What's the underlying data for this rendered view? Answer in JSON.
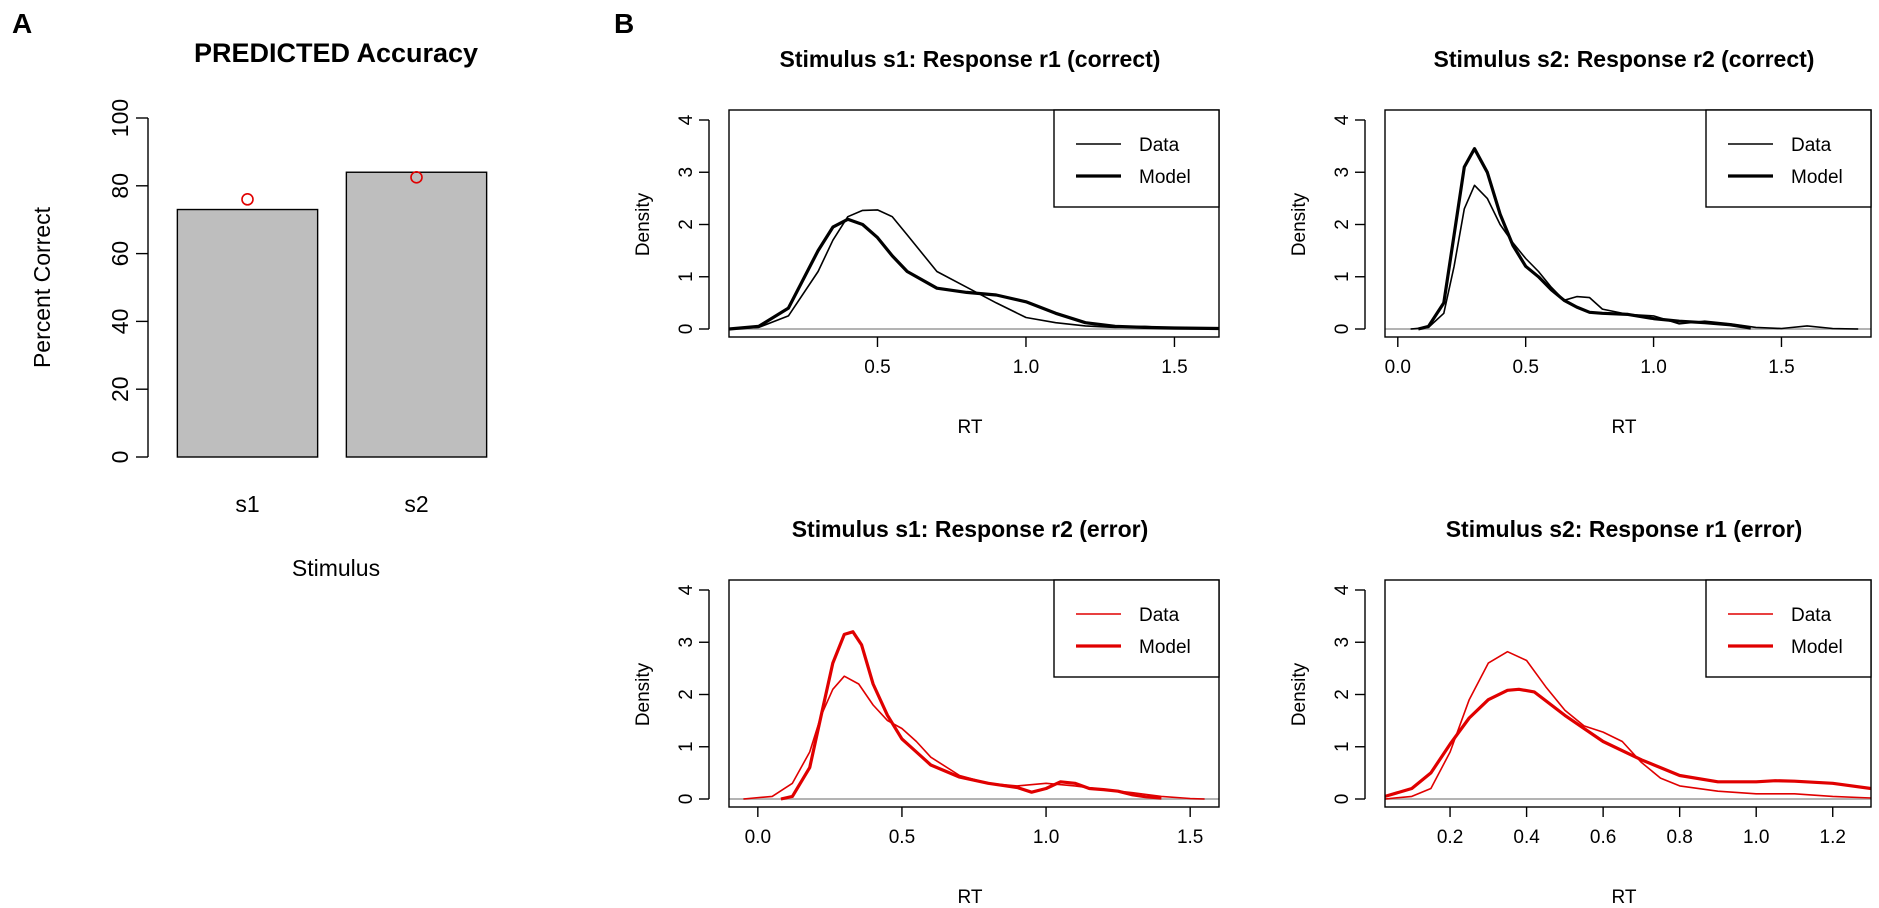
{
  "panel_labels": {
    "a": "A",
    "b": "B"
  },
  "colors": {
    "bar_fill": "#bebebe",
    "data_black": "#000000",
    "model_red": "#e00000",
    "baseline": "#b3b3b3"
  },
  "chart_data": [
    {
      "id": "accuracy",
      "type": "bar",
      "title": "PREDICTED Accuracy",
      "xlabel": "Stimulus",
      "ylabel": "Percent Correct",
      "categories": [
        "s1",
        "s2"
      ],
      "values": [
        73,
        84
      ],
      "points_label": "predicted",
      "points": [
        76,
        82.5
      ],
      "ylim": [
        0,
        100
      ],
      "yticks": [
        0,
        20,
        40,
        60,
        80,
        100
      ],
      "ytick_labels": [
        "0",
        "20",
        "40",
        "60",
        "80",
        "100"
      ]
    },
    {
      "id": "s1r1",
      "type": "line",
      "title": "Stimulus s1: Response r1 (correct)",
      "xlabel": "RT",
      "ylabel": "Density",
      "color": "#000000",
      "xlim": [
        0.0,
        1.65
      ],
      "ylim": [
        0,
        4
      ],
      "xticks": [
        0.5,
        1.0,
        1.5
      ],
      "xtick_labels": [
        "0.5",
        "1.0",
        "1.5"
      ],
      "yticks": [
        0,
        1,
        2,
        3,
        4
      ],
      "ytick_labels": [
        "0",
        "1",
        "2",
        "3",
        "4"
      ],
      "legend": [
        "Data",
        "Model"
      ],
      "series": [
        {
          "name": "Data",
          "x": [
            0.0,
            0.1,
            0.2,
            0.3,
            0.35,
            0.4,
            0.45,
            0.5,
            0.55,
            0.6,
            0.7,
            0.8,
            0.9,
            1.0,
            1.1,
            1.2,
            1.3,
            1.4,
            1.5,
            1.65
          ],
          "y": [
            0.0,
            0.03,
            0.25,
            1.1,
            1.7,
            2.15,
            2.27,
            2.28,
            2.15,
            1.8,
            1.1,
            0.8,
            0.5,
            0.22,
            0.12,
            0.06,
            0.03,
            0.05,
            0.02,
            0.0
          ]
        },
        {
          "name": "Model",
          "x": [
            0.0,
            0.1,
            0.2,
            0.3,
            0.35,
            0.4,
            0.45,
            0.5,
            0.55,
            0.6,
            0.7,
            0.8,
            0.9,
            1.0,
            1.1,
            1.2,
            1.3,
            1.4,
            1.5,
            1.65
          ],
          "y": [
            0.0,
            0.05,
            0.4,
            1.5,
            1.95,
            2.1,
            2.0,
            1.75,
            1.4,
            1.1,
            0.78,
            0.7,
            0.65,
            0.52,
            0.3,
            0.12,
            0.05,
            0.03,
            0.02,
            0.01
          ]
        }
      ]
    },
    {
      "id": "s2r2",
      "type": "line",
      "title": "Stimulus s2: Response r2 (correct)",
      "xlabel": "RT",
      "ylabel": "Density",
      "color": "#000000",
      "xlim": [
        -0.05,
        1.85
      ],
      "ylim": [
        0,
        4
      ],
      "xticks": [
        0.0,
        0.5,
        1.0,
        1.5
      ],
      "xtick_labels": [
        "0.0",
        "0.5",
        "1.0",
        "1.5"
      ],
      "yticks": [
        0,
        1,
        2,
        3,
        4
      ],
      "ytick_labels": [
        "0",
        "1",
        "2",
        "3",
        "4"
      ],
      "legend": [
        "Data",
        "Model"
      ],
      "series": [
        {
          "name": "Data",
          "x": [
            0.05,
            0.12,
            0.18,
            0.22,
            0.26,
            0.3,
            0.35,
            0.4,
            0.45,
            0.5,
            0.55,
            0.6,
            0.65,
            0.7,
            0.75,
            0.8,
            0.9,
            1.0,
            1.1,
            1.2,
            1.3,
            1.4,
            1.5,
            1.6,
            1.7,
            1.8
          ],
          "y": [
            0.0,
            0.03,
            0.3,
            1.2,
            2.3,
            2.75,
            2.5,
            2.0,
            1.65,
            1.35,
            1.1,
            0.8,
            0.55,
            0.62,
            0.6,
            0.38,
            0.28,
            0.25,
            0.1,
            0.15,
            0.1,
            0.03,
            0.01,
            0.06,
            0.01,
            0.0
          ]
        },
        {
          "name": "Model",
          "x": [
            0.08,
            0.12,
            0.18,
            0.22,
            0.26,
            0.3,
            0.35,
            0.4,
            0.45,
            0.5,
            0.55,
            0.6,
            0.65,
            0.7,
            0.75,
            0.8,
            0.9,
            1.0,
            1.1,
            1.2,
            1.3,
            1.38
          ],
          "y": [
            0.0,
            0.05,
            0.5,
            1.8,
            3.1,
            3.45,
            3.0,
            2.2,
            1.6,
            1.2,
            1.0,
            0.75,
            0.55,
            0.42,
            0.32,
            0.3,
            0.28,
            0.2,
            0.15,
            0.12,
            0.08,
            0.02
          ]
        }
      ]
    },
    {
      "id": "s1r2",
      "type": "line",
      "title": "Stimulus s1: Response r2 (error)",
      "xlabel": "RT",
      "ylabel": "Density",
      "color": "#e00000",
      "xlim": [
        -0.1,
        1.6
      ],
      "ylim": [
        0,
        4
      ],
      "xticks": [
        0.0,
        0.5,
        1.0,
        1.5
      ],
      "xtick_labels": [
        "0.0",
        "0.5",
        "1.0",
        "1.5"
      ],
      "yticks": [
        0,
        1,
        2,
        3,
        4
      ],
      "ytick_labels": [
        "0",
        "1",
        "2",
        "3",
        "4"
      ],
      "legend": [
        "Data",
        "Model"
      ],
      "series": [
        {
          "name": "Data",
          "x": [
            -0.05,
            0.05,
            0.12,
            0.18,
            0.22,
            0.26,
            0.3,
            0.35,
            0.4,
            0.45,
            0.5,
            0.55,
            0.6,
            0.7,
            0.8,
            0.9,
            1.0,
            1.1,
            1.2,
            1.3,
            1.4,
            1.5,
            1.55
          ],
          "y": [
            0.0,
            0.05,
            0.3,
            0.9,
            1.6,
            2.1,
            2.35,
            2.2,
            1.8,
            1.5,
            1.35,
            1.1,
            0.8,
            0.45,
            0.3,
            0.25,
            0.3,
            0.25,
            0.18,
            0.12,
            0.05,
            0.01,
            0.0
          ]
        },
        {
          "name": "Model",
          "x": [
            0.08,
            0.12,
            0.18,
            0.22,
            0.26,
            0.3,
            0.33,
            0.36,
            0.4,
            0.45,
            0.5,
            0.55,
            0.6,
            0.7,
            0.8,
            0.9,
            0.95,
            1.0,
            1.05,
            1.1,
            1.15,
            1.2,
            1.25,
            1.3,
            1.35,
            1.4
          ],
          "y": [
            0.0,
            0.05,
            0.6,
            1.6,
            2.6,
            3.15,
            3.2,
            2.95,
            2.2,
            1.6,
            1.15,
            0.9,
            0.65,
            0.42,
            0.3,
            0.22,
            0.13,
            0.2,
            0.33,
            0.3,
            0.2,
            0.18,
            0.15,
            0.08,
            0.04,
            0.02
          ]
        }
      ]
    },
    {
      "id": "s2r1",
      "type": "line",
      "title": "Stimulus s2: Response r1 (error)",
      "xlabel": "RT",
      "ylabel": "Density",
      "color": "#e00000",
      "xlim": [
        0.03,
        1.3
      ],
      "ylim": [
        0,
        4
      ],
      "xticks": [
        0.2,
        0.4,
        0.6,
        0.8,
        1.0,
        1.2
      ],
      "xtick_labels": [
        "0.2",
        "0.4",
        "0.6",
        "0.8",
        "1.0",
        "1.2"
      ],
      "yticks": [
        0,
        1,
        2,
        3,
        4
      ],
      "ytick_labels": [
        "0",
        "1",
        "2",
        "3",
        "4"
      ],
      "legend": [
        "Data",
        "Model"
      ],
      "series": [
        {
          "name": "Data",
          "x": [
            0.03,
            0.1,
            0.15,
            0.2,
            0.25,
            0.3,
            0.35,
            0.4,
            0.45,
            0.5,
            0.55,
            0.6,
            0.65,
            0.7,
            0.75,
            0.8,
            0.9,
            1.0,
            1.1,
            1.2,
            1.3
          ],
          "y": [
            0.0,
            0.05,
            0.2,
            0.9,
            1.9,
            2.6,
            2.82,
            2.65,
            2.15,
            1.7,
            1.4,
            1.28,
            1.1,
            0.7,
            0.4,
            0.25,
            0.15,
            0.1,
            0.1,
            0.05,
            0.02
          ]
        },
        {
          "name": "Model",
          "x": [
            0.03,
            0.1,
            0.15,
            0.2,
            0.25,
            0.3,
            0.35,
            0.38,
            0.42,
            0.5,
            0.6,
            0.7,
            0.8,
            0.9,
            1.0,
            1.05,
            1.1,
            1.2,
            1.3
          ],
          "y": [
            0.05,
            0.2,
            0.5,
            1.05,
            1.55,
            1.9,
            2.08,
            2.1,
            2.05,
            1.6,
            1.1,
            0.75,
            0.45,
            0.33,
            0.33,
            0.35,
            0.34,
            0.3,
            0.2
          ]
        }
      ]
    }
  ]
}
